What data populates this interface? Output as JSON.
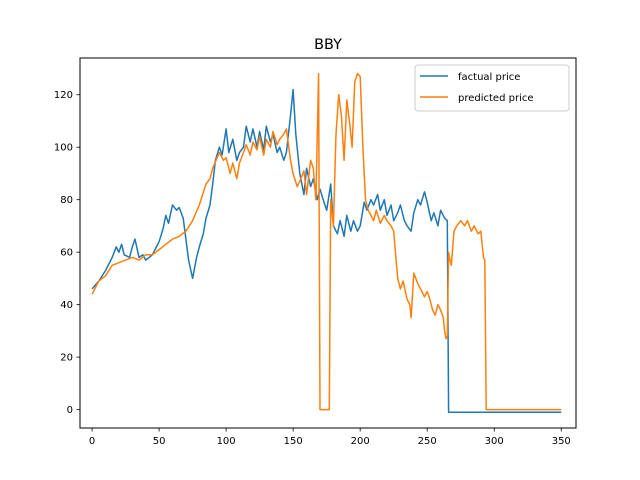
{
  "chart_data": {
    "type": "line",
    "title": "BBY",
    "xlabel": "",
    "ylabel": "",
    "xlim": [
      -9,
      361
    ],
    "ylim": [
      -7,
      134
    ],
    "xticks": [
      0,
      50,
      100,
      150,
      200,
      250,
      300,
      350
    ],
    "yticks": [
      0,
      20,
      40,
      60,
      80,
      100,
      120
    ],
    "grid": false,
    "legend": "top-right",
    "series": [
      {
        "name": "factual price",
        "color": "#1f77b4",
        "x": [
          0,
          5,
          10,
          15,
          18,
          20,
          22,
          24,
          28,
          30,
          32,
          35,
          38,
          40,
          45,
          48,
          50,
          53,
          55,
          57,
          60,
          63,
          65,
          68,
          70,
          72,
          75,
          78,
          80,
          83,
          85,
          88,
          90,
          92,
          95,
          97,
          100,
          102,
          105,
          108,
          110,
          113,
          115,
          118,
          120,
          123,
          125,
          128,
          130,
          133,
          135,
          138,
          140,
          143,
          145,
          148,
          150,
          152,
          155,
          158,
          160,
          163,
          165,
          168,
          170,
          173,
          175,
          178,
          180,
          183,
          185,
          188,
          190,
          193,
          195,
          198,
          200,
          203,
          205,
          208,
          210,
          213,
          215,
          218,
          220,
          223,
          225,
          228,
          230,
          233,
          235,
          238,
          240,
          243,
          245,
          248,
          250,
          253,
          255,
          258,
          260,
          263,
          265,
          266,
          267,
          270,
          280,
          300,
          320,
          340,
          350
        ],
        "y": [
          46,
          49,
          53,
          58,
          62,
          60,
          63,
          59,
          58,
          62,
          65,
          58,
          59,
          57,
          59,
          62,
          64,
          69,
          74,
          71,
          78,
          76,
          77,
          73,
          65,
          57,
          50,
          58,
          62,
          67,
          73,
          78,
          86,
          95,
          100,
          97,
          107,
          98,
          103,
          95,
          98,
          100,
          108,
          102,
          107,
          100,
          106,
          99,
          108,
          102,
          105,
          98,
          100,
          95,
          98,
          112,
          122,
          105,
          90,
          82,
          92,
          85,
          88,
          80,
          84,
          79,
          76,
          86,
          70,
          67,
          72,
          66,
          74,
          68,
          72,
          68,
          70,
          79,
          76,
          80,
          78,
          82,
          76,
          80,
          74,
          78,
          72,
          75,
          78,
          72,
          70,
          68,
          75,
          80,
          78,
          83,
          79,
          72,
          75,
          70,
          76,
          73,
          72,
          -1,
          -1,
          -1,
          -1,
          -1,
          -1,
          -1,
          -1
        ]
      },
      {
        "name": "predicted price",
        "color": "#ff7f0e",
        "x": [
          0,
          5,
          10,
          15,
          20,
          25,
          30,
          35,
          40,
          45,
          50,
          55,
          60,
          65,
          70,
          75,
          80,
          85,
          88,
          90,
          95,
          98,
          100,
          103,
          105,
          108,
          110,
          113,
          115,
          118,
          120,
          123,
          125,
          128,
          130,
          133,
          135,
          138,
          140,
          143,
          145,
          148,
          150,
          153,
          155,
          158,
          160,
          163,
          165,
          167,
          169,
          170,
          172,
          175,
          177,
          178,
          180,
          182,
          184,
          186,
          188,
          190,
          192,
          194,
          196,
          198,
          200,
          202,
          204,
          206,
          208,
          210,
          212,
          215,
          218,
          220,
          223,
          225,
          226,
          228,
          230,
          232,
          235,
          237,
          238,
          240,
          243,
          245,
          248,
          250,
          252,
          254,
          256,
          258,
          260,
          262,
          263,
          264,
          265,
          266,
          267,
          268,
          270,
          272,
          275,
          278,
          280,
          283,
          285,
          288,
          290,
          292,
          293,
          294,
          295,
          300,
          320,
          340,
          350
        ],
        "y": [
          44,
          49,
          51,
          55,
          56,
          57,
          58,
          57,
          59,
          59,
          61,
          63,
          65,
          66,
          68,
          72,
          78,
          86,
          88,
          92,
          98,
          95,
          96,
          90,
          94,
          88,
          94,
          98,
          101,
          97,
          102,
          99,
          104,
          97,
          103,
          100,
          106,
          101,
          103,
          105,
          107,
          95,
          90,
          85,
          87,
          91,
          82,
          95,
          92,
          80,
          128,
          0,
          0,
          0,
          0,
          80,
          70,
          105,
          120,
          112,
          95,
          118,
          110,
          100,
          125,
          128,
          127,
          100,
          80,
          76,
          74,
          72,
          76,
          71,
          74,
          72,
          70,
          68,
          62,
          50,
          46,
          49,
          42,
          40,
          35,
          52,
          48,
          46,
          43,
          45,
          42,
          38,
          36,
          40,
          38,
          35,
          30,
          27,
          28,
          60,
          57,
          55,
          68,
          70,
          72,
          70,
          72,
          68,
          70,
          67,
          68,
          58,
          57,
          0,
          0,
          0,
          0,
          0,
          0
        ]
      }
    ]
  }
}
